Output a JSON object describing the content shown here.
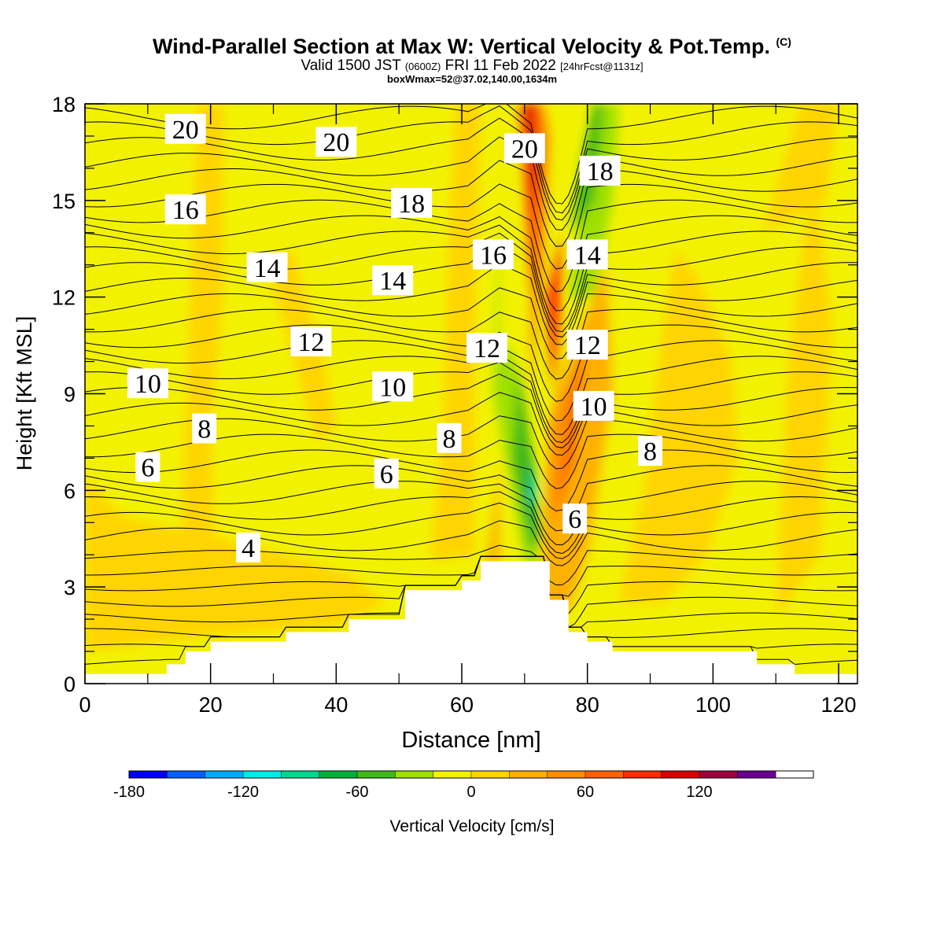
{
  "title": {
    "main": "Wind-Parallel Section at Max W: Vertical Velocity & Pot.Temp.",
    "copyright": "(C)",
    "valid_prefix": "Valid 1500 JST",
    "valid_utc": "(0600Z)",
    "valid_date": "FRI 11 Feb 2022",
    "forecast": "[24hrFcst@1131z]",
    "box": "boxWmax=52@37.02,140.00,1634m"
  },
  "chart_data": {
    "type": "contour",
    "title": "Wind-Parallel Section at Max W: Vertical Velocity & Pot.Temp.",
    "xlabel": "Distance [nm]",
    "ylabel": "Height [Kft MSL]",
    "xlim": [
      0,
      123
    ],
    "ylim": [
      0,
      18
    ],
    "xticks": [
      0,
      20,
      40,
      60,
      80,
      100,
      120
    ],
    "yticks": [
      0,
      3,
      6,
      9,
      12,
      15,
      18
    ],
    "isotherm_interval": 1,
    "isotherm_labels": [
      {
        "value": "20",
        "x": 16,
        "y": 17.2
      },
      {
        "value": "20",
        "x": 40,
        "y": 16.8
      },
      {
        "value": "20",
        "x": 70,
        "y": 16.6
      },
      {
        "value": "18",
        "x": 82,
        "y": 15.9
      },
      {
        "value": "18",
        "x": 52,
        "y": 14.9
      },
      {
        "value": "16",
        "x": 16,
        "y": 14.7
      },
      {
        "value": "16",
        "x": 65,
        "y": 13.3
      },
      {
        "value": "14",
        "x": 29,
        "y": 12.9
      },
      {
        "value": "14",
        "x": 49,
        "y": 12.5
      },
      {
        "value": "14",
        "x": 80,
        "y": 13.3
      },
      {
        "value": "12",
        "x": 36,
        "y": 10.6
      },
      {
        "value": "12",
        "x": 64,
        "y": 10.4
      },
      {
        "value": "12",
        "x": 80,
        "y": 10.5
      },
      {
        "value": "10",
        "x": 10,
        "y": 9.3
      },
      {
        "value": "10",
        "x": 49,
        "y": 9.2
      },
      {
        "value": "10",
        "x": 81,
        "y": 8.6
      },
      {
        "value": "8",
        "x": 19,
        "y": 7.9
      },
      {
        "value": "8",
        "x": 58,
        "y": 7.6
      },
      {
        "value": "8",
        "x": 90,
        "y": 7.2
      },
      {
        "value": "6",
        "x": 10,
        "y": 6.7
      },
      {
        "value": "6",
        "x": 48,
        "y": 6.5
      },
      {
        "value": "6",
        "x": 78,
        "y": 5.1
      },
      {
        "value": "4",
        "x": 26,
        "y": 4.2
      }
    ],
    "terrain_steps": [
      [
        0,
        0.3
      ],
      [
        13,
        0.6
      ],
      [
        16,
        1.0
      ],
      [
        20,
        1.3
      ],
      [
        32,
        1.6
      ],
      [
        42,
        2.0
      ],
      [
        51,
        2.9
      ],
      [
        60,
        3.2
      ],
      [
        63,
        3.8
      ],
      [
        74,
        2.6
      ],
      [
        77,
        1.6
      ],
      [
        80,
        1.3
      ],
      [
        84,
        1.0
      ],
      [
        107,
        0.6
      ],
      [
        113,
        0.3
      ],
      [
        123,
        0.3
      ]
    ],
    "colorbar": {
      "label": "Vertical Velocity [cm/s]",
      "levels": [
        -180,
        -160,
        -140,
        -120,
        -100,
        -80,
        -60,
        -40,
        -20,
        0,
        20,
        40,
        60,
        80,
        100,
        120,
        140,
        160
      ],
      "tick_labels": [
        "-180",
        "-120",
        "-60",
        "0",
        "60",
        "120"
      ],
      "tick_values": [
        -180,
        -120,
        -60,
        0,
        60,
        120
      ],
      "colors": [
        "#0000f0",
        "#0060ff",
        "#00aaff",
        "#00e8e8",
        "#00d890",
        "#00b03c",
        "#40b818",
        "#9ee000",
        "#f2f200",
        "#ffd400",
        "#ffb000",
        "#ff8c00",
        "#ff6000",
        "#ff2a00",
        "#d80000",
        "#a00040",
        "#6a0090"
      ]
    },
    "updraft_core_max_cm_s": 52
  }
}
